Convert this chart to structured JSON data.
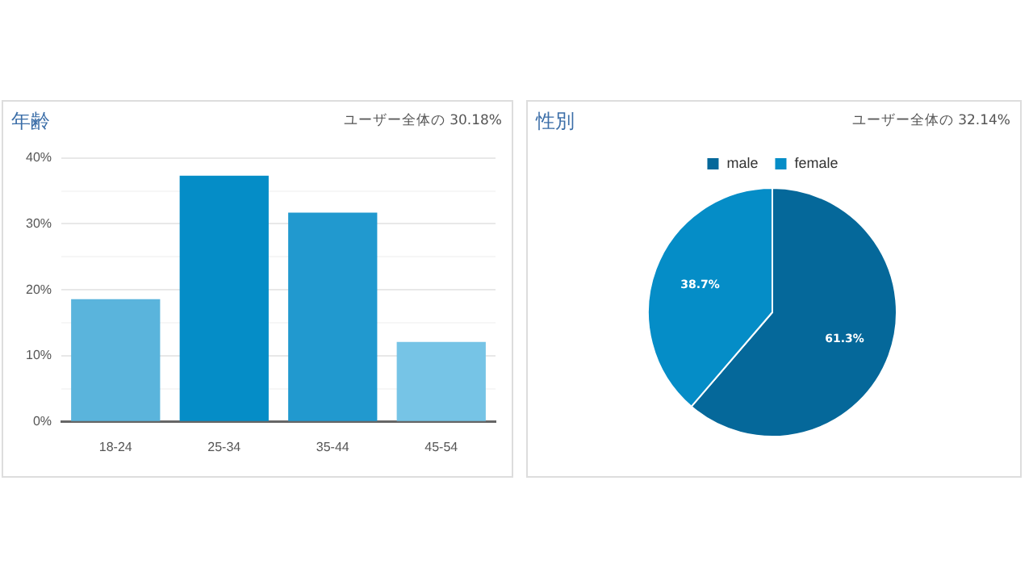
{
  "chart_data": [
    {
      "type": "bar",
      "title": "年齢",
      "subtitle": "ユーザー全体の 30.18%",
      "categories": [
        "18-24",
        "25-34",
        "35-44",
        "45-54"
      ],
      "values": [
        18.6,
        37.3,
        31.7,
        12.1
      ],
      "colors": [
        "#5ab4dc",
        "#058dc7",
        "#2199cf",
        "#76c4e6"
      ],
      "ylim": [
        0,
        40
      ],
      "yticks": [
        {
          "value": 0,
          "label": "0%"
        },
        {
          "value": 5,
          "label": null
        },
        {
          "value": 10,
          "label": "10%"
        },
        {
          "value": 15,
          "label": null
        },
        {
          "value": 20,
          "label": "20%"
        },
        {
          "value": 25,
          "label": null
        },
        {
          "value": 30,
          "label": "30%"
        },
        {
          "value": 35,
          "label": null
        },
        {
          "value": 40,
          "label": "40%"
        }
      ],
      "grid": "y",
      "legend": false
    },
    {
      "type": "pie",
      "title": "性別",
      "subtitle": "ユーザー全体の 32.14%",
      "categories": [
        "male",
        "female"
      ],
      "values": [
        61.3,
        38.7
      ],
      "colors": [
        "#05689a",
        "#058dc7"
      ],
      "value_labels": [
        "61.3%",
        "38.7%"
      ],
      "legend": "top"
    }
  ]
}
